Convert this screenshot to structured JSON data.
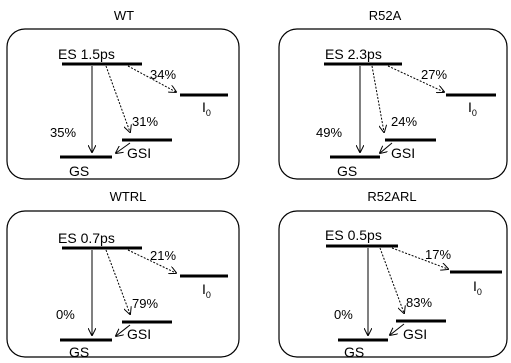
{
  "panels": [
    {
      "title": "WT",
      "es_label": "ES 1.5ps",
      "i0_label": "I",
      "i0_sub": "0",
      "gsi_label": "GSI",
      "gs_label": "GS",
      "pct_to_i0": "34%",
      "pct_to_gsi": "31%",
      "pct_to_gs": "35%"
    },
    {
      "title": "R52A",
      "es_label": "ES 2.3ps",
      "i0_label": "I",
      "i0_sub": "0",
      "gsi_label": "GSI",
      "gs_label": "GS",
      "pct_to_i0": "27%",
      "pct_to_gsi": "24%",
      "pct_to_gs": "49%"
    },
    {
      "title": "WTRL",
      "es_label": "ES 0.7ps",
      "i0_label": "I",
      "i0_sub": "0",
      "gsi_label": "GSI",
      "gs_label": "GS",
      "pct_to_i0": "21%",
      "pct_to_gsi": "79%",
      "pct_to_gs": "0%"
    },
    {
      "title": "R52ARL",
      "es_label": "ES 0.5ps",
      "i0_label": "I",
      "i0_sub": "0",
      "gsi_label": "GSI",
      "gs_label": "GS",
      "pct_to_i0": "17%",
      "pct_to_gsi": "83%",
      "pct_to_gs": "0%"
    }
  ]
}
